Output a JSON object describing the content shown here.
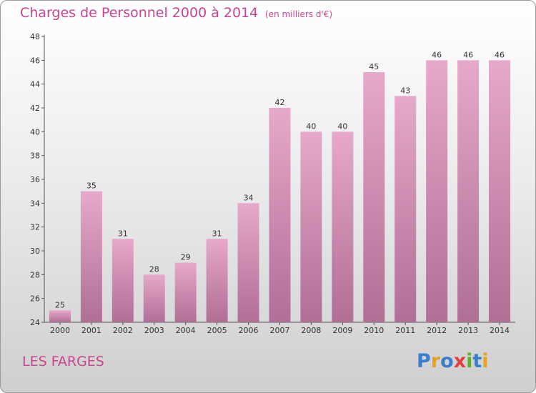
{
  "title": "Charges de Personnel 2000 à 2014",
  "subtitle": "(en milliers d'€)",
  "place_name": "LES FARGES",
  "logo": {
    "letters": [
      "P",
      "r",
      "o",
      "x",
      "i",
      "t",
      "i"
    ],
    "colors": [
      "#3a7dc9",
      "#e8a020",
      "#3a7dc9",
      "#e04040",
      "#60b030",
      "#3a7dc9",
      "#e8a020"
    ]
  },
  "colors": {
    "title": "#c9458f",
    "bar_top": "#e6a8cb",
    "bar_bottom": "#b06f95"
  },
  "chart_data": {
    "type": "bar",
    "categories": [
      "2000",
      "2001",
      "2002",
      "2003",
      "2004",
      "2005",
      "2006",
      "2007",
      "2008",
      "2009",
      "2010",
      "2011",
      "2012",
      "2013",
      "2014"
    ],
    "values": [
      25,
      35,
      31,
      28,
      29,
      31,
      34,
      42,
      40,
      40,
      45,
      43,
      46,
      46,
      46
    ],
    "data_labels": [
      "25",
      "35",
      "31",
      "28",
      "29",
      "31",
      "34",
      "42",
      "40",
      "40",
      "45",
      "43",
      "46",
      "46",
      "46"
    ],
    "ylim": [
      24,
      48
    ],
    "yticks": [
      24,
      26,
      28,
      30,
      32,
      34,
      36,
      38,
      40,
      42,
      44,
      46,
      48
    ],
    "grid": false,
    "title": "Charges de Personnel 2000 à 2014",
    "xlabel": "",
    "ylabel": ""
  }
}
